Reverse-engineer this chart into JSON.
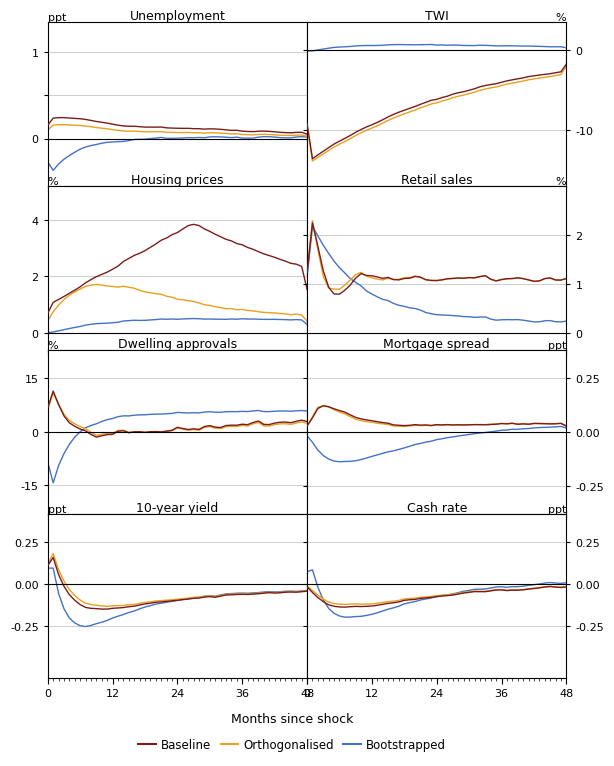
{
  "colors": {
    "baseline": "#7B1C1C",
    "orthogonalised": "#E8A020",
    "bootstrapped": "#4472C4"
  },
  "xlabel": "Months since shock",
  "panels": [
    {
      "title": "Unemployment",
      "unit_left": "ppt",
      "unit_right": "",
      "ylim": [
        -0.55,
        1.35
      ],
      "yticks": [
        0,
        0.5,
        1.0
      ],
      "ytick_labels": [
        "0",
        "",
        "1"
      ],
      "hline": 0,
      "row": 0,
      "col": 0,
      "show_xticks": false
    },
    {
      "title": "TWI",
      "unit_left": "",
      "unit_right": "%",
      "ylim": [
        -17,
        3.5
      ],
      "yticks": [
        -10,
        0
      ],
      "ytick_labels": [
        "-10",
        "0"
      ],
      "hline": 0,
      "row": 0,
      "col": 1,
      "show_xticks": false
    },
    {
      "title": "Housing prices",
      "unit_left": "%",
      "unit_right": "",
      "ylim": [
        -0.6,
        5.2
      ],
      "yticks": [
        0,
        2,
        4
      ],
      "ytick_labels": [
        "0",
        "2",
        "4"
      ],
      "hline": 0,
      "row": 1,
      "col": 0,
      "show_xticks": false
    },
    {
      "title": "Retail sales",
      "unit_left": "",
      "unit_right": "%",
      "ylim": [
        -0.35,
        3.0
      ],
      "yticks": [
        0,
        1,
        2
      ],
      "ytick_labels": [
        "0",
        "1",
        "2"
      ],
      "hline": 0,
      "row": 1,
      "col": 1,
      "show_xticks": false
    },
    {
      "title": "Dwelling approvals",
      "unit_left": "%",
      "unit_right": "",
      "ylim": [
        -23,
        23
      ],
      "yticks": [
        -15,
        0,
        15
      ],
      "ytick_labels": [
        "-15",
        "0",
        "15"
      ],
      "hline": 0,
      "row": 2,
      "col": 0,
      "show_xticks": false
    },
    {
      "title": "Mortgage spread",
      "unit_left": "",
      "unit_right": "ppt",
      "ylim": [
        -0.38,
        0.38
      ],
      "yticks": [
        -0.25,
        0.0,
        0.25
      ],
      "ytick_labels": [
        "-0.25",
        "0.00",
        "0.25"
      ],
      "hline": 0,
      "row": 2,
      "col": 1,
      "show_xticks": false
    },
    {
      "title": "10-year yield",
      "unit_left": "ppt",
      "unit_right": "",
      "ylim": [
        -0.56,
        0.42
      ],
      "yticks": [
        -0.25,
        0.0,
        0.25
      ],
      "ytick_labels": [
        "-0.25",
        "0.00",
        "0.25"
      ],
      "hline": 0,
      "row": 3,
      "col": 0,
      "show_xticks": true
    },
    {
      "title": "Cash rate",
      "unit_left": "",
      "unit_right": "ppt",
      "ylim": [
        -0.56,
        0.42
      ],
      "yticks": [
        -0.25,
        0.0,
        0.25
      ],
      "ytick_labels": [
        "-0.25",
        "0.00",
        "0.25"
      ],
      "hline": 0,
      "row": 3,
      "col": 1,
      "show_xticks": true
    }
  ]
}
